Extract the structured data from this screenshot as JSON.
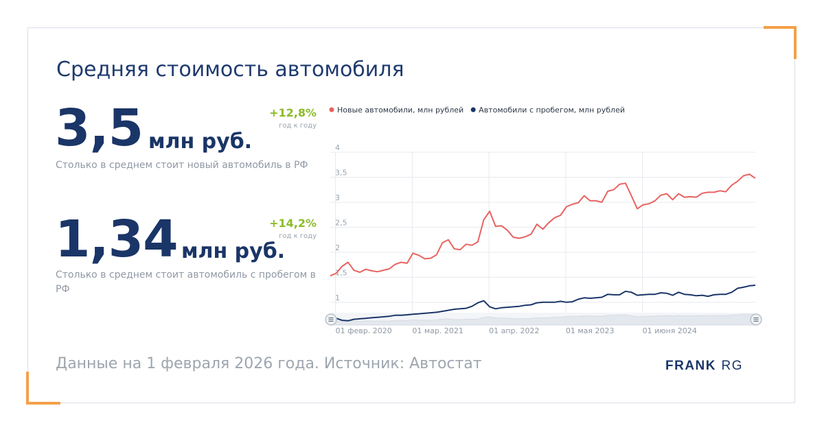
{
  "title": "Средняя стоимость автомобиля",
  "new_car": {
    "value": "3,5",
    "unit": "млн руб.",
    "change": "+12,8%",
    "change_note": "год к году",
    "description": "Столько в среднем стоит новый автомобиль в РФ"
  },
  "used_car": {
    "value": "1,34",
    "unit": "млн руб.",
    "change": "+14,2%",
    "change_note": "год к году",
    "description": "Столько в среднем стоит автомобиль с пробегом в РФ"
  },
  "footer": {
    "source": "Данные на 1 февраля 2026 года. Источник: Автостат",
    "logo_bold": "FRANK",
    "logo_light": "RG"
  },
  "colors": {
    "accent": "#f4a048",
    "primary": "#1a3567",
    "positive": "#8dbb2a",
    "new_series": "#e8625f",
    "used_series": "#1a3567"
  },
  "chart_data": {
    "type": "line",
    "ylim": [
      0.6,
      4
    ],
    "yticks": [
      "1",
      "1,5",
      "2",
      "2,5",
      "3",
      "3,5",
      "4"
    ],
    "ytick_values": [
      1,
      1.5,
      2,
      2.5,
      3,
      3.5,
      4
    ],
    "xticks": [
      "01 февр. 2020",
      "01 мар. 2021",
      "01 апр. 2022",
      "01 мая 2023",
      "01 июня 2024"
    ],
    "xtick_indices": [
      1,
      14,
      27,
      40,
      53
    ],
    "grid": true,
    "legend_position": "top",
    "series": [
      {
        "name": "Новые автомобили, млн рублей",
        "color": "#e8625f",
        "values": [
          1.53,
          1.58,
          1.72,
          1.8,
          1.64,
          1.6,
          1.66,
          1.63,
          1.61,
          1.64,
          1.67,
          1.76,
          1.8,
          1.78,
          1.98,
          1.94,
          1.87,
          1.88,
          1.95,
          2.19,
          2.25,
          2.07,
          2.05,
          2.16,
          2.14,
          2.21,
          2.65,
          2.82,
          2.52,
          2.53,
          2.44,
          2.3,
          2.28,
          2.31,
          2.36,
          2.56,
          2.46,
          2.59,
          2.69,
          2.74,
          2.91,
          2.96,
          2.99,
          3.13,
          3.03,
          3.03,
          3.0,
          3.22,
          3.25,
          3.36,
          3.38,
          3.13,
          2.87,
          2.95,
          2.97,
          3.03,
          3.14,
          3.17,
          3.05,
          3.17,
          3.1,
          3.11,
          3.1,
          3.18,
          3.2,
          3.2,
          3.23,
          3.21,
          3.34,
          3.42,
          3.53,
          3.56,
          3.48
        ]
      },
      {
        "name": "Автомобили с пробегом, млн рублей",
        "color": "#1a3567",
        "values": [
          0.57,
          0.68,
          0.64,
          0.63,
          0.66,
          0.67,
          0.68,
          0.69,
          0.7,
          0.71,
          0.72,
          0.74,
          0.74,
          0.75,
          0.76,
          0.77,
          0.78,
          0.79,
          0.8,
          0.82,
          0.84,
          0.86,
          0.87,
          0.88,
          0.92,
          0.99,
          1.03,
          0.91,
          0.87,
          0.89,
          0.9,
          0.91,
          0.92,
          0.94,
          0.95,
          0.99,
          1.0,
          1.0,
          1.0,
          1.02,
          1.0,
          1.01,
          1.06,
          1.09,
          1.08,
          1.09,
          1.1,
          1.16,
          1.15,
          1.15,
          1.22,
          1.2,
          1.14,
          1.15,
          1.16,
          1.16,
          1.19,
          1.18,
          1.14,
          1.2,
          1.16,
          1.15,
          1.13,
          1.14,
          1.12,
          1.15,
          1.16,
          1.16,
          1.2,
          1.28,
          1.3,
          1.33,
          1.34
        ]
      }
    ]
  }
}
